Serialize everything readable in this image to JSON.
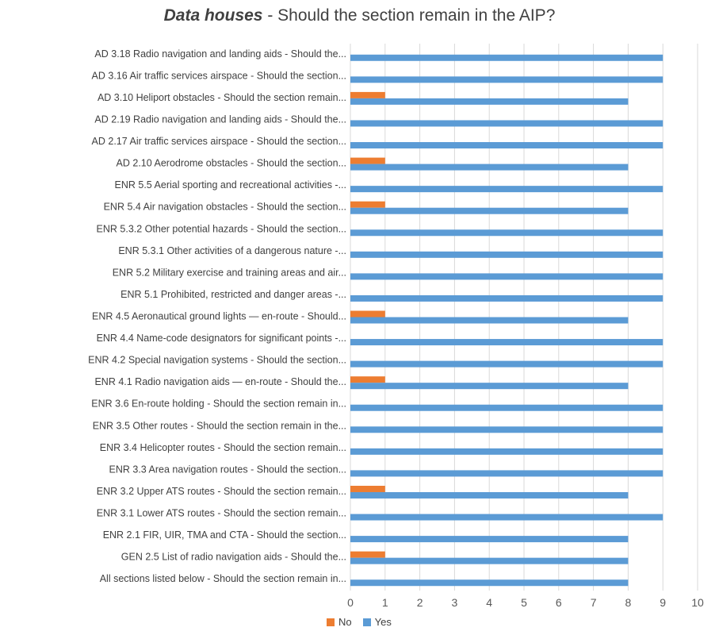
{
  "chart_data": {
    "type": "bar",
    "orientation": "horizontal",
    "title_em": "Data houses",
    "title_rest": " - Should the section remain in the AIP?",
    "xlim": [
      0,
      10
    ],
    "xticks": [
      0,
      1,
      2,
      3,
      4,
      5,
      6,
      7,
      8,
      9,
      10
    ],
    "grid": true,
    "legend_position": "bottom",
    "categories": [
      "AD 3.18 Radio navigation and landing aids - Should the...",
      "AD 3.16 Air traffic services airspace - Should the section...",
      "AD 3.10 Heliport obstacles - Should the section remain...",
      "AD 2.19 Radio navigation and landing aids - Should the...",
      "AD 2.17 Air traffic services airspace - Should the section...",
      "AD 2.10 Aerodrome obstacles - Should the section...",
      "ENR 5.5 Aerial sporting and recreational activities -...",
      "ENR 5.4 Air navigation obstacles - Should the section...",
      "ENR 5.3.2 Other potential hazards - Should the section...",
      "ENR 5.3.1 Other activities of a dangerous nature -...",
      "ENR 5.2 Military exercise and training areas and air...",
      "ENR 5.1 Prohibited, restricted and danger areas -...",
      "ENR 4.5 Aeronautical ground lights — en-route - Should...",
      "ENR 4.4 Name-code designators for significant points -...",
      "ENR 4.2 Special navigation systems - Should the section...",
      "ENR 4.1 Radio navigation aids — en-route - Should the...",
      "ENR 3.6 En-route holding - Should the section remain in...",
      "ENR 3.5 Other routes - Should the section remain in the...",
      "ENR 3.4 Helicopter routes - Should the section remain...",
      "ENR 3.3 Area navigation routes - Should the section...",
      "ENR 3.2 Upper ATS routes - Should the section remain...",
      "ENR 3.1 Lower ATS routes - Should the section remain...",
      "ENR 2.1 FIR, UIR, TMA and CTA - Should the section...",
      "GEN 2.5 List of radio navigation aids - Should the...",
      "All sections listed below - Should the section remain in..."
    ],
    "series": [
      {
        "name": "No",
        "color": "#ED7D31",
        "values": [
          0,
          0,
          1,
          0,
          0,
          1,
          0,
          1,
          0,
          0,
          0,
          0,
          1,
          0,
          0,
          1,
          0,
          0,
          0,
          0,
          1,
          0,
          0,
          1,
          0
        ]
      },
      {
        "name": "Yes",
        "color": "#5B9BD5",
        "values": [
          9,
          9,
          8,
          9,
          9,
          8,
          9,
          8,
          9,
          9,
          9,
          9,
          8,
          9,
          9,
          8,
          9,
          9,
          9,
          9,
          8,
          9,
          8,
          8,
          8
        ]
      }
    ]
  }
}
